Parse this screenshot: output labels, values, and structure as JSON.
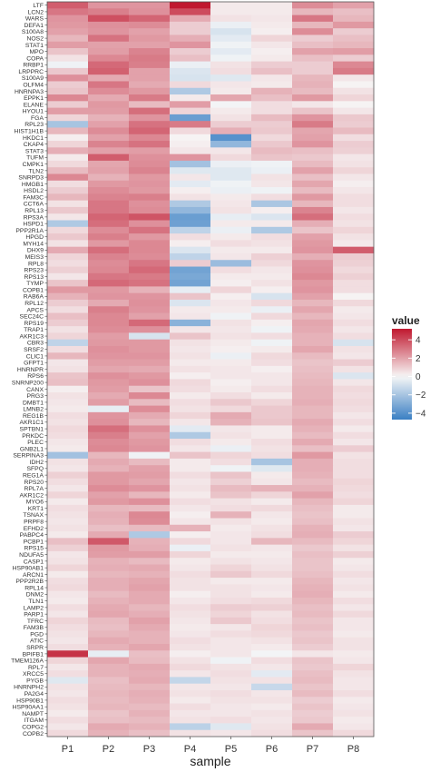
{
  "chart_data": {
    "type": "heatmap",
    "xlabel": "sample",
    "ylabel": "",
    "legend": {
      "title": "value",
      "ticks": [
        4,
        2,
        0,
        -2,
        -4
      ],
      "range": [
        -4.7,
        5.2
      ],
      "placement": "right"
    },
    "colors": {
      "low": "#3a7fc4",
      "mid": "#f7f7f7",
      "high": "#c0182f"
    },
    "columns": [
      "P1",
      "P2",
      "P3",
      "P4",
      "P5",
      "P6",
      "P7",
      "P8"
    ],
    "rows": [
      "LTF",
      "LCN2",
      "WARS",
      "DEFA1",
      "S100A8",
      "NOS2",
      "STAT1",
      "MPO",
      "COPA",
      "RRBP1",
      "LRPPRC",
      "S100A9",
      "OLFM4",
      "HNRNPA3",
      "EPPK1",
      "ELANE",
      "HYOU1",
      "FGA",
      "RPL23",
      "HIST1H1B",
      "HKDC1",
      "CKAP4",
      "STAT3",
      "TUFM",
      "CMPK1",
      "TLN2",
      "SNRPD3",
      "HMGB1",
      "HSDL2",
      "FAM3C",
      "CCT6A",
      "RPL13",
      "RPS3A",
      "HSPD1",
      "PPP2R1A",
      "HPGD",
      "MYH14",
      "DHX9",
      "MEIS3",
      "RPL8",
      "RPS23",
      "RPS13",
      "TYMP",
      "COPB1",
      "RAB6A",
      "RPL12",
      "APCS",
      "SEC24C",
      "RPS19",
      "TRAP1",
      "AKR1C3",
      "CBR3",
      "SRSF2",
      "CLIC1",
      "GFPT1",
      "HNRNPR",
      "RPS6",
      "SNRNP200",
      "CANX",
      "PRG3",
      "DMBT1",
      "LMNB2",
      "REG1B",
      "AKR1C1",
      "SPTBN1",
      "PRKDC",
      "PLEC",
      "GNB2L1",
      "SERPINA3",
      "IDH2",
      "SFPQ",
      "REG1A",
      "RPS20",
      "RPL7A",
      "AKR1C2",
      "MYO6",
      "KRT1",
      "TSNAX",
      "PRPF8",
      "EFHD2",
      "PABPC4",
      "PCBP1",
      "RPS15",
      "NDUFA5",
      "CASP1",
      "HSP90AB1",
      "ARCN1",
      "PPP2R2B",
      "RPL14",
      "DNM2",
      "TLN1",
      "LAMP2",
      "PARP1",
      "TFRC",
      "FAM3B",
      "PGD",
      "ATIC",
      "SRPR",
      "BPIFB1",
      "TMEM126A",
      "RPL7",
      "XRCC5",
      "PYGB",
      "HNRNPH2",
      "PA2G4",
      "HSP90B1",
      "HSP90AA1",
      "NAMPT",
      "ITGAM",
      "COPG2",
      "COPB2"
    ],
    "values": [
      [
        3.6,
        2.3,
        2.3,
        5.2,
        0.3,
        0.3,
        2.5,
        2.0
      ],
      [
        3.0,
        2.8,
        2.4,
        4.0,
        0.3,
        0.3,
        1.5,
        1.3
      ],
      [
        2.3,
        3.9,
        3.4,
        1.8,
        0.5,
        0.4,
        3.0,
        1.5
      ],
      [
        2.2,
        2.4,
        2.5,
        1.0,
        -0.3,
        0.3,
        1.5,
        2.2
      ],
      [
        2.0,
        2.3,
        2.0,
        1.0,
        -0.8,
        0.2,
        2.5,
        1.0
      ],
      [
        1.5,
        3.1,
        2.2,
        1.7,
        -0.5,
        0.8,
        1.0,
        1.3
      ],
      [
        2.1,
        2.0,
        2.0,
        2.3,
        -0.2,
        0.4,
        1.3,
        1.5
      ],
      [
        1.2,
        2.1,
        2.7,
        1.0,
        -0.5,
        0.2,
        2.0,
        2.1
      ],
      [
        0.5,
        2.6,
        2.9,
        1.3,
        -0.2,
        0.3,
        1.3,
        1.0
      ],
      [
        -0.2,
        3.3,
        2.8,
        -0.3,
        0.5,
        1.0,
        1.0,
        2.6
      ],
      [
        1.1,
        3.5,
        2.0,
        -0.7,
        0.6,
        1.3,
        1.0,
        2.9
      ],
      [
        2.4,
        1.8,
        2.0,
        -0.8,
        -0.6,
        0.4,
        1.5,
        0.4
      ],
      [
        1.0,
        3.0,
        1.8,
        0.7,
        0.4,
        0.3,
        1.6,
        0.1
      ],
      [
        1.2,
        2.5,
        2.2,
        -1.8,
        0.3,
        1.6,
        1.4,
        0.5
      ],
      [
        2.6,
        1.8,
        2.9,
        0.3,
        1.9,
        1.3,
        2.2,
        0.8
      ],
      [
        1.0,
        2.2,
        1.4,
        2.1,
        -0.1,
        0.6,
        0.4,
        0.1
      ],
      [
        2.1,
        2.1,
        3.2,
        0.8,
        0.3,
        0.6,
        1.2,
        0.4
      ],
      [
        0.8,
        1.6,
        2.3,
        -3.5,
        0.5,
        1.4,
        2.3,
        1.1
      ],
      [
        -2.0,
        2.0,
        3.1,
        2.9,
        1.0,
        1.0,
        2.9,
        1.0
      ],
      [
        1.5,
        2.5,
        3.4,
        0.7,
        1.7,
        1.1,
        1.9,
        1.4
      ],
      [
        0.2,
        2.0,
        2.6,
        0.1,
        -4.0,
        0.7,
        2.0,
        0.6
      ],
      [
        0.8,
        2.7,
        3.1,
        0.2,
        -2.5,
        1.1,
        2.3,
        1.0
      ],
      [
        1.7,
        2.0,
        2.1,
        0.4,
        0.4,
        1.4,
        1.3,
        0.9
      ],
      [
        0.3,
        3.6,
        2.4,
        2.3,
        0.7,
        1.2,
        1.1,
        0.4
      ],
      [
        0.7,
        1.9,
        2.5,
        -2.1,
        -0.3,
        -0.2,
        1.4,
        0.5
      ],
      [
        1.4,
        2.0,
        2.7,
        -0.6,
        -0.6,
        -0.3,
        2.0,
        0.8
      ],
      [
        2.6,
        1.6,
        2.2,
        0.4,
        -0.6,
        0.5,
        1.3,
        0.4
      ],
      [
        0.6,
        2.2,
        2.3,
        -0.5,
        -0.2,
        0.4,
        1.9,
        0.2
      ],
      [
        1.0,
        2.5,
        2.2,
        0.2,
        -0.3,
        -0.2,
        1.4,
        0.4
      ],
      [
        1.5,
        2.7,
        2.8,
        0.5,
        0.3,
        0.6,
        2.2,
        0.6
      ],
      [
        0.5,
        3.0,
        2.4,
        -1.8,
        0.4,
        -1.9,
        1.5,
        0.6
      ],
      [
        1.1,
        3.0,
        2.5,
        -2.5,
        0.5,
        0.2,
        2.7,
        0.4
      ],
      [
        0.4,
        3.4,
        3.8,
        -3.5,
        -0.4,
        -0.7,
        3.2,
        0.6
      ],
      [
        -1.8,
        3.2,
        2.4,
        -3.4,
        0.3,
        0.3,
        1.7,
        0.5
      ],
      [
        0.7,
        2.5,
        3.1,
        -1.4,
        -0.3,
        -1.8,
        1.2,
        0.8
      ],
      [
        1.1,
        2.8,
        2.2,
        0.6,
        0.3,
        0.6,
        2.0,
        0.5
      ],
      [
        0.5,
        2.2,
        2.6,
        0.2,
        0.6,
        0.5,
        2.2,
        0.3
      ],
      [
        1.8,
        3.2,
        2.6,
        -0.7,
        0.3,
        0.3,
        2.3,
        3.6
      ],
      [
        0.8,
        2.7,
        2.5,
        -1.4,
        0.4,
        0.9,
        1.7,
        1.0
      ],
      [
        0.6,
        2.5,
        3.0,
        1.0,
        -2.3,
        0.7,
        2.3,
        0.9
      ],
      [
        0.9,
        2.6,
        3.3,
        -3.3,
        0.6,
        0.4,
        2.4,
        0.7
      ],
      [
        0.4,
        3.0,
        2.9,
        -3.1,
        0.3,
        0.3,
        2.6,
        0.9
      ],
      [
        1.2,
        3.3,
        3.1,
        -3.3,
        0.2,
        0.5,
        2.2,
        0.6
      ],
      [
        2.2,
        2.2,
        1.6,
        -0.4,
        0.8,
        0.2,
        2.3,
        0.6
      ],
      [
        1.6,
        2.3,
        2.3,
        1.2,
        0.2,
        -0.8,
        2.0,
        0.1
      ],
      [
        1.0,
        1.8,
        2.4,
        -0.7,
        0.4,
        0.7,
        1.5,
        0.7
      ],
      [
        0.6,
        2.8,
        2.3,
        0.3,
        0.3,
        -0.3,
        1.9,
        0.3
      ],
      [
        1.3,
        2.6,
        2.0,
        0.4,
        -0.2,
        0.7,
        1.5,
        0.4
      ],
      [
        1.0,
        2.6,
        3.3,
        -2.7,
        0.5,
        0.2,
        1.9,
        0.6
      ],
      [
        0.5,
        2.5,
        2.4,
        0.4,
        0.4,
        -0.2,
        1.8,
        0.4
      ],
      [
        0.8,
        2.1,
        -0.8,
        1.2,
        0.5,
        0.6,
        1.6,
        0.6
      ],
      [
        -1.4,
        2.2,
        2.2,
        0.5,
        0.3,
        -0.2,
        1.6,
        -0.8
      ],
      [
        0.6,
        2.4,
        2.2,
        0.4,
        0.2,
        0.3,
        1.9,
        0.5
      ],
      [
        1.5,
        2.3,
        2.3,
        0.5,
        -0.3,
        0.7,
        1.4,
        0.4
      ],
      [
        0.4,
        2.1,
        2.1,
        0.3,
        0.3,
        0.6,
        1.2,
        1.0
      ],
      [
        0.5,
        1.9,
        1.8,
        0.5,
        0.4,
        0.2,
        1.3,
        0.5
      ],
      [
        1.2,
        2.4,
        2.2,
        0.2,
        0.4,
        0.4,
        1.4,
        -0.7
      ],
      [
        1.3,
        2.2,
        2.4,
        0.7,
        0.2,
        0.4,
        1.5,
        0.4
      ],
      [
        0.2,
        2.1,
        1.2,
        0.6,
        0.3,
        0.6,
        1.6,
        0.7
      ],
      [
        0.5,
        1.8,
        2.6,
        0.3,
        0.6,
        0.3,
        1.6,
        0.6
      ],
      [
        0.4,
        2.1,
        1.4,
        0.6,
        1.1,
        0.8,
        1.7,
        0.7
      ],
      [
        0.3,
        -0.4,
        2.5,
        0.5,
        0.7,
        1.1,
        1.5,
        0.6
      ],
      [
        0.6,
        2.3,
        1.8,
        0.8,
        1.8,
        1.1,
        1.5,
        0.4
      ],
      [
        0.5,
        2.4,
        1.5,
        0.4,
        1.6,
        1.2,
        1.8,
        0.6
      ],
      [
        0.7,
        3.2,
        2.4,
        -0.5,
        0.4,
        0.3,
        1.6,
        0.3
      ],
      [
        0.6,
        2.8,
        2.0,
        -1.8,
        0.5,
        0.3,
        1.4,
        0.6
      ],
      [
        0.4,
        2.5,
        2.2,
        0.6,
        0.3,
        0.6,
        1.8,
        0.4
      ],
      [
        0.3,
        2.6,
        2.3,
        0.4,
        -0.3,
        0.5,
        1.3,
        1.0
      ],
      [
        -2.1,
        1.5,
        -0.2,
        1.2,
        0.8,
        0.6,
        2.2,
        0.5
      ],
      [
        0.5,
        1.8,
        1.4,
        0.3,
        0.6,
        -2.0,
        1.7,
        0.6
      ],
      [
        0.4,
        1.6,
        2.0,
        0.3,
        -0.2,
        -0.6,
        1.7,
        0.6
      ],
      [
        0.9,
        2.2,
        2.1,
        0.6,
        1.2,
        0.3,
        1.6,
        0.6
      ],
      [
        0.6,
        2.2,
        1.9,
        0.4,
        0.9,
        0.4,
        1.4,
        0.8
      ],
      [
        0.4,
        2.5,
        2.3,
        0.5,
        1.4,
        1.6,
        1.6,
        0.7
      ],
      [
        0.8,
        2.0,
        1.5,
        0.3,
        1.2,
        0.8,
        2.0,
        0.6
      ],
      [
        0.3,
        2.2,
        2.4,
        0.6,
        0.5,
        0.3,
        1.5,
        0.8
      ],
      [
        0.6,
        1.5,
        1.4,
        0.4,
        0.6,
        0.7,
        1.3,
        0.3
      ],
      [
        0.5,
        1.7,
        2.6,
        0.2,
        1.6,
        0.4,
        1.2,
        0.3
      ],
      [
        0.4,
        1.6,
        2.5,
        0.4,
        0.5,
        0.3,
        1.3,
        0.5
      ],
      [
        0.5,
        1.3,
        1.4,
        1.6,
        0.3,
        0.5,
        1.6,
        0.4
      ],
      [
        0.3,
        1.8,
        -1.8,
        0.2,
        0.4,
        0.6,
        1.7,
        1.0
      ],
      [
        1.3,
        3.7,
        1.6,
        0.7,
        0.4,
        1.5,
        1.4,
        0.8
      ],
      [
        0.9,
        2.2,
        1.7,
        -0.3,
        0.5,
        0.4,
        1.1,
        0.5
      ],
      [
        0.4,
        2.1,
        2.1,
        0.8,
        0.3,
        0.3,
        1.3,
        0.9
      ],
      [
        0.5,
        1.6,
        1.4,
        0.3,
        0.5,
        0.4,
        1.2,
        0.3
      ],
      [
        0.8,
        1.7,
        1.8,
        0.4,
        0.8,
        0.5,
        1.2,
        0.4
      ],
      [
        0.3,
        1.5,
        1.6,
        0.6,
        1.1,
        0.7,
        1.3,
        0.6
      ],
      [
        0.6,
        1.7,
        1.9,
        0.5,
        0.3,
        0.3,
        1.5,
        0.4
      ],
      [
        0.7,
        1.7,
        2.0,
        0.5,
        0.5,
        0.4,
        1.6,
        0.5
      ],
      [
        0.4,
        1.4,
        1.8,
        0.2,
        0.5,
        0.3,
        1.7,
        0.3
      ],
      [
        0.3,
        1.6,
        1.8,
        0.4,
        0.6,
        0.7,
        1.5,
        0.6
      ],
      [
        0.6,
        1.8,
        1.5,
        0.6,
        1.0,
        0.9,
        1.3,
        0.4
      ],
      [
        0.4,
        1.9,
        1.7,
        0.5,
        0.8,
        0.5,
        1.4,
        0.7
      ],
      [
        0.8,
        1.4,
        2.0,
        0.4,
        1.1,
        0.6,
        1.2,
        0.4
      ],
      [
        0.6,
        1.3,
        1.8,
        0.3,
        0.4,
        0.8,
        1.3,
        0.4
      ],
      [
        0.5,
        1.5,
        1.6,
        0.4,
        0.6,
        0.7,
        1.1,
        0.3
      ],
      [
        0.4,
        1.8,
        1.6,
        0.6,
        0.4,
        0.5,
        1.2,
        0.5
      ],
      [
        0.6,
        1.6,
        1.9,
        0.5,
        0.4,
        0.3,
        1.0,
        0.5
      ],
      [
        4.6,
        -0.4,
        1.3,
        0.2,
        0.4,
        -0.1,
        0.4,
        0.3
      ],
      [
        0.8,
        1.9,
        1.4,
        0.5,
        -0.2,
        0.6,
        1.2,
        0.4
      ],
      [
        0.4,
        1.6,
        1.8,
        0.7,
        0.5,
        0.4,
        1.1,
        0.8
      ],
      [
        0.6,
        1.6,
        1.7,
        0.4,
        0.6,
        -0.5,
        1.3,
        0.5
      ],
      [
        -0.6,
        1.3,
        1.8,
        -1.3,
        0.5,
        0.5,
        1.4,
        0.4
      ],
      [
        0.5,
        1.4,
        1.5,
        0.4,
        0.4,
        -1.2,
        1.2,
        0.4
      ],
      [
        0.4,
        1.5,
        1.7,
        0.5,
        0.6,
        0.4,
        1.4,
        0.6
      ],
      [
        0.6,
        1.4,
        1.6,
        0.3,
        0.5,
        0.5,
        1.0,
        0.3
      ],
      [
        0.5,
        1.5,
        1.4,
        0.6,
        0.4,
        0.3,
        1.2,
        0.4
      ],
      [
        0.3,
        1.2,
        1.6,
        0.4,
        0.4,
        0.5,
        1.0,
        0.5
      ],
      [
        0.6,
        1.3,
        1.4,
        0.5,
        0.6,
        0.4,
        1.1,
        0.3
      ],
      [
        0.4,
        1.8,
        1.6,
        -1.5,
        -0.6,
        0.5,
        1.8,
        0.4
      ],
      [
        0.7,
        1.6,
        1.3,
        0.5,
        0.4,
        0.6,
        1.2,
        0.7
      ]
    ]
  }
}
